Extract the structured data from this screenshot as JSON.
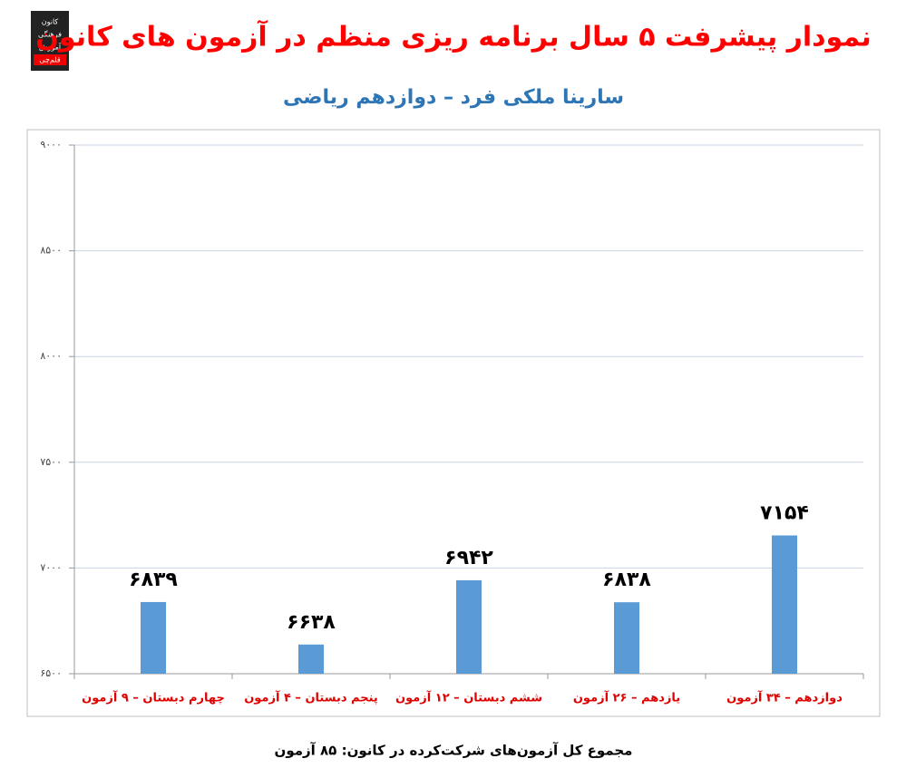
{
  "logo": [
    "کانون",
    "فرهنگی",
    "آموزش",
    "قلم‌چی"
  ],
  "footer": "مجموع کل آزمون‌های شرکت‌کرده در کانون: ۸۵ آزمون",
  "chart_data": {
    "type": "bar",
    "title": "نمودار پیشرفت ۵ سال برنامه ریزی منظم در آزمون های کانون",
    "subtitle": "سارینا ملکی فرد – دوازدهم ریاضی",
    "categories": [
      "چهارم دبستان – ۹ آزمون",
      "پنجم دبستان – ۴ آزمون",
      "ششم دبستان – ۱۲ آزمون",
      "یازدهم – ۲۶ آزمون",
      "دوازدهم – ۳۴ آزمون"
    ],
    "values": [
      6839,
      6638,
      6942,
      6838,
      7154
    ],
    "value_labels": [
      "۶۸۳۹",
      "۶۶۳۸",
      "۶۹۴۲",
      "۶۸۳۸",
      "۷۱۵۴"
    ],
    "color": "#5b9bd5",
    "ylim": [
      6500,
      9000
    ],
    "yticks": [
      {
        "value": 6500,
        "label": "۶۵۰۰"
      },
      {
        "value": 7000,
        "label": "۷۰۰۰"
      },
      {
        "value": 7500,
        "label": "۷۵۰۰"
      },
      {
        "value": 8000,
        "label": "۸۰۰۰"
      },
      {
        "value": 8500,
        "label": "۸۵۰۰"
      },
      {
        "value": 9000,
        "label": "۹۰۰۰"
      }
    ],
    "grid": true
  }
}
